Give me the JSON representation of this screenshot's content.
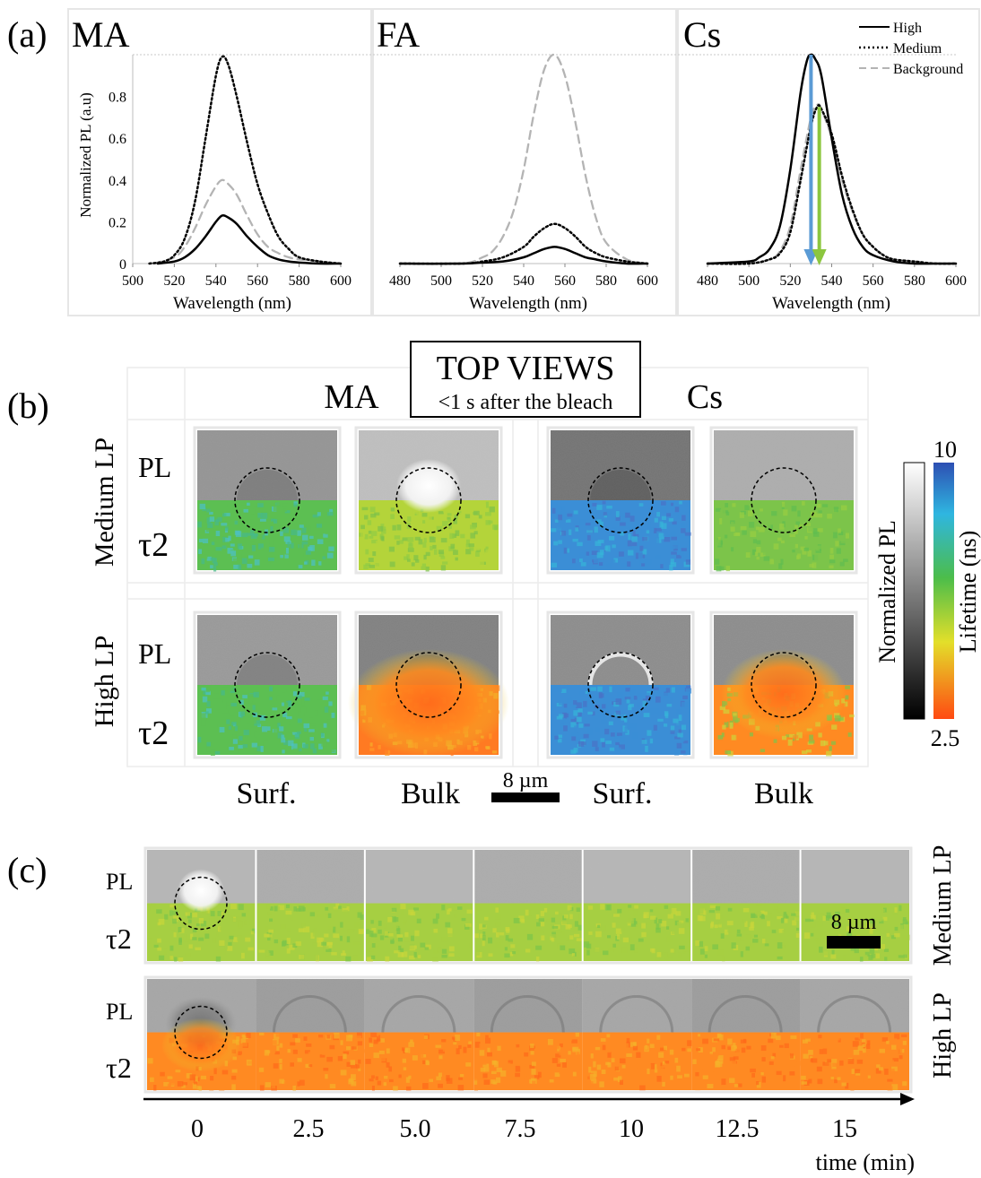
{
  "panel_a": {
    "label": "(a)",
    "ylabel": "Normalized PL (a.u)",
    "xlabel": "Wavelength (nm)",
    "legend": [
      "High",
      "Medium",
      "Background"
    ],
    "colors": {
      "high": "#000000",
      "medium": "#000000",
      "background": "#b4b4b4",
      "blue_arrow": "#5b9bd5",
      "green_arrow": "#8cc63f"
    }
  },
  "chart_data": [
    {
      "type": "line",
      "title": "MA",
      "xlabel": "Wavelength (nm)",
      "ylabel": "Normalized PL (a.u)",
      "xlim": [
        500,
        600
      ],
      "ylim": [
        0,
        1
      ],
      "xticks": [
        "500",
        "520",
        "540",
        "560",
        "580",
        "600"
      ],
      "yticks": [
        "0",
        "0.2",
        "0.4",
        "0.6",
        "0.8"
      ],
      "series": [
        {
          "name": "High",
          "x": [
            512,
            520,
            525,
            530,
            535,
            540,
            543,
            546,
            550,
            555,
            560,
            565,
            570,
            575,
            580,
            590,
            600
          ],
          "y": [
            0,
            0.01,
            0.03,
            0.07,
            0.13,
            0.2,
            0.23,
            0.22,
            0.19,
            0.13,
            0.08,
            0.04,
            0.02,
            0.01,
            0.005,
            0,
            0
          ]
        },
        {
          "name": "Medium",
          "x": [
            508,
            515,
            520,
            525,
            530,
            535,
            540,
            543,
            546,
            550,
            555,
            560,
            565,
            570,
            575,
            580,
            590,
            600
          ],
          "y": [
            0,
            0.01,
            0.04,
            0.12,
            0.3,
            0.6,
            0.9,
            0.99,
            0.95,
            0.8,
            0.58,
            0.38,
            0.24,
            0.13,
            0.07,
            0.03,
            0.01,
            0
          ]
        },
        {
          "name": "Background",
          "x": [
            510,
            520,
            525,
            530,
            535,
            540,
            543,
            546,
            550,
            555,
            560,
            565,
            570,
            575,
            580,
            590,
            600
          ],
          "y": [
            0,
            0.03,
            0.08,
            0.17,
            0.28,
            0.37,
            0.4,
            0.38,
            0.33,
            0.23,
            0.14,
            0.08,
            0.05,
            0.03,
            0.02,
            0.01,
            0
          ]
        }
      ]
    },
    {
      "type": "line",
      "title": "FA",
      "xlabel": "Wavelength (nm)",
      "xlim": [
        480,
        600
      ],
      "ylim": [
        0,
        1
      ],
      "xticks": [
        "480",
        "500",
        "520",
        "540",
        "560",
        "580",
        "600"
      ],
      "series": [
        {
          "name": "High",
          "x": [
            480,
            510,
            520,
            530,
            540,
            545,
            550,
            555,
            560,
            565,
            570,
            575,
            580,
            590,
            600
          ],
          "y": [
            0,
            0,
            0.005,
            0.01,
            0.03,
            0.05,
            0.07,
            0.08,
            0.07,
            0.05,
            0.03,
            0.02,
            0.01,
            0,
            0
          ]
        },
        {
          "name": "Medium",
          "x": [
            480,
            510,
            520,
            530,
            540,
            545,
            550,
            555,
            560,
            565,
            570,
            575,
            580,
            590,
            600
          ],
          "y": [
            0,
            0,
            0.01,
            0.03,
            0.08,
            0.13,
            0.17,
            0.19,
            0.17,
            0.13,
            0.08,
            0.05,
            0.03,
            0.01,
            0
          ]
        },
        {
          "name": "Background",
          "x": [
            480,
            510,
            520,
            525,
            530,
            535,
            540,
            545,
            550,
            555,
            560,
            565,
            570,
            575,
            580,
            590,
            600
          ],
          "y": [
            0,
            0,
            0.03,
            0.06,
            0.13,
            0.25,
            0.45,
            0.72,
            0.93,
            1.0,
            0.9,
            0.68,
            0.42,
            0.22,
            0.1,
            0.02,
            0
          ]
        }
      ]
    },
    {
      "type": "line",
      "title": "Cs",
      "xlabel": "Wavelength (nm)",
      "xlim": [
        480,
        600
      ],
      "ylim": [
        0,
        1
      ],
      "xticks": [
        "480",
        "500",
        "520",
        "540",
        "560",
        "580",
        "600"
      ],
      "series": [
        {
          "name": "High",
          "x": [
            480,
            500,
            505,
            510,
            515,
            520,
            525,
            528,
            530,
            532,
            535,
            540,
            545,
            550,
            555,
            560,
            570,
            580,
            590,
            600
          ],
          "y": [
            0,
            0.01,
            0.03,
            0.07,
            0.18,
            0.45,
            0.82,
            0.97,
            1.0,
            0.98,
            0.9,
            0.6,
            0.33,
            0.17,
            0.08,
            0.04,
            0.01,
            0,
            0,
            0
          ]
        },
        {
          "name": "Medium",
          "x": [
            480,
            500,
            510,
            515,
            520,
            525,
            530,
            533,
            535,
            540,
            545,
            550,
            555,
            560,
            565,
            570,
            580,
            590,
            600
          ],
          "y": [
            0,
            0,
            0.02,
            0.05,
            0.15,
            0.4,
            0.66,
            0.75,
            0.74,
            0.62,
            0.42,
            0.26,
            0.14,
            0.08,
            0.04,
            0.02,
            0.01,
            0,
            0
          ]
        },
        {
          "name": "Background",
          "x": [
            480,
            500,
            510,
            515,
            520,
            525,
            530,
            533,
            535,
            540,
            545,
            550,
            555,
            560,
            565,
            570,
            580,
            590,
            600
          ],
          "y": [
            0,
            0,
            0.02,
            0.06,
            0.18,
            0.45,
            0.7,
            0.76,
            0.74,
            0.6,
            0.4,
            0.25,
            0.14,
            0.08,
            0.04,
            0.02,
            0.01,
            0,
            0
          ]
        }
      ],
      "arrows": [
        {
          "color": "blue",
          "x": 530,
          "y_from": 1.0,
          "y_to": 0
        },
        {
          "color": "green",
          "x": 534,
          "y_from": 0.75,
          "y_to": 0
        }
      ]
    }
  ],
  "panel_b": {
    "label": "(b)",
    "box_title": "TOP VIEWS",
    "box_subtitle": "<1 s after the bleach",
    "col_groups": [
      "MA",
      "Cs"
    ],
    "row_labels": [
      "Medium LP",
      "High LP"
    ],
    "sub_labels": [
      "PL",
      "τ2"
    ],
    "col_labels": [
      "Surf.",
      "Bulk",
      "Surf.",
      "Bulk"
    ],
    "scale_bar": "8 µm",
    "colorbar": {
      "max": "10",
      "min": "2.5",
      "pl_label": "Normalized PL",
      "lifetime_label": "Lifetime (ns)"
    },
    "tiles": [
      {
        "row": 0,
        "col": 0,
        "pl_level": 0.58,
        "tau": "green-cyan",
        "spot": "dark"
      },
      {
        "row": 0,
        "col": 1,
        "pl_level": 0.75,
        "tau": "yellow-green",
        "spot": "bright"
      },
      {
        "row": 0,
        "col": 2,
        "pl_level": 0.45,
        "tau": "blue",
        "spot": "dark-ring"
      },
      {
        "row": 0,
        "col": 3,
        "pl_level": 0.68,
        "tau": "green",
        "spot": "faint"
      },
      {
        "row": 1,
        "col": 0,
        "pl_level": 0.6,
        "tau": "green-cyan",
        "spot": "dark"
      },
      {
        "row": 1,
        "col": 1,
        "pl_level": 0.5,
        "tau": "orange",
        "spot": "dark"
      },
      {
        "row": 1,
        "col": 2,
        "pl_level": 0.55,
        "tau": "blue",
        "spot": "bright-ring"
      },
      {
        "row": 1,
        "col": 3,
        "pl_level": 0.55,
        "tau": "orange-green",
        "spot": "dark"
      }
    ]
  },
  "panel_c": {
    "label": "(c)",
    "sub_labels": [
      "PL",
      "τ2"
    ],
    "row_labels": [
      "Medium LP",
      "High LP"
    ],
    "scale_bar": "8 µm",
    "times": [
      "0",
      "2.5",
      "5.0",
      "7.5",
      "10",
      "12.5",
      "15"
    ],
    "time_label": "time (min)"
  }
}
